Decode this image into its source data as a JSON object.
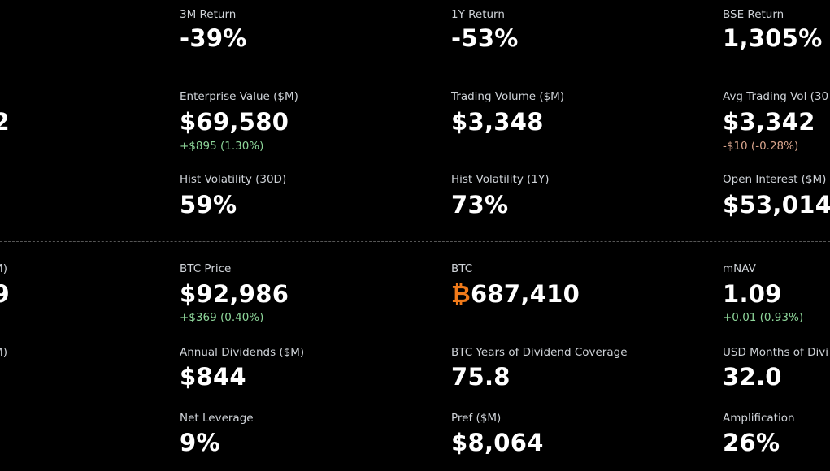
{
  "left_fragments": [
    {
      "text": "2",
      "kind": "value",
      "row": 1
    },
    {
      "text": "M)",
      "kind": "label",
      "row": 3
    },
    {
      "text": "9",
      "kind": "value",
      "row": 3
    },
    {
      "text": "M)",
      "kind": "label",
      "row": 4
    }
  ],
  "metrics": [
    {
      "label": "3M Return",
      "value": "-39%"
    },
    {
      "label": "1Y Return",
      "value": "-53%"
    },
    {
      "label": "BSE Return",
      "value": "1,305%"
    },
    {
      "label": "Enterprise Value ($M)",
      "value": "$69,580",
      "change": "+$895 (1.30%)",
      "trend": "up"
    },
    {
      "label": "Trading Volume ($M)",
      "value": "$3,348"
    },
    {
      "label": "Avg Trading Vol (30",
      "value": "$3,342",
      "change": "-$10 (-0.28%)",
      "trend": "down"
    },
    {
      "label": "Hist Volatility (30D)",
      "value": "59%"
    },
    {
      "label": "Hist Volatility (1Y)",
      "value": "73%"
    },
    {
      "label": "Open Interest ($M)",
      "value": "$53,014"
    },
    {
      "label": "BTC Price",
      "value": "$92,986",
      "change": "+$369 (0.40%)",
      "trend": "up"
    },
    {
      "label": "BTC",
      "symbol": "₿",
      "value": "687,410"
    },
    {
      "label": "mNAV",
      "value": "1.09",
      "change": "+0.01 (0.93%)",
      "trend": "up"
    },
    {
      "label": "Annual Dividends ($M)",
      "value": "$844"
    },
    {
      "label": "BTC Years of Dividend Coverage",
      "value": "75.8"
    },
    {
      "label": "USD Months of Divi",
      "value": "32.0"
    },
    {
      "label": "Net Leverage",
      "value": "9%"
    },
    {
      "label": "Pref ($M)",
      "value": "$8,064"
    },
    {
      "label": "Amplification",
      "value": "26%"
    }
  ]
}
